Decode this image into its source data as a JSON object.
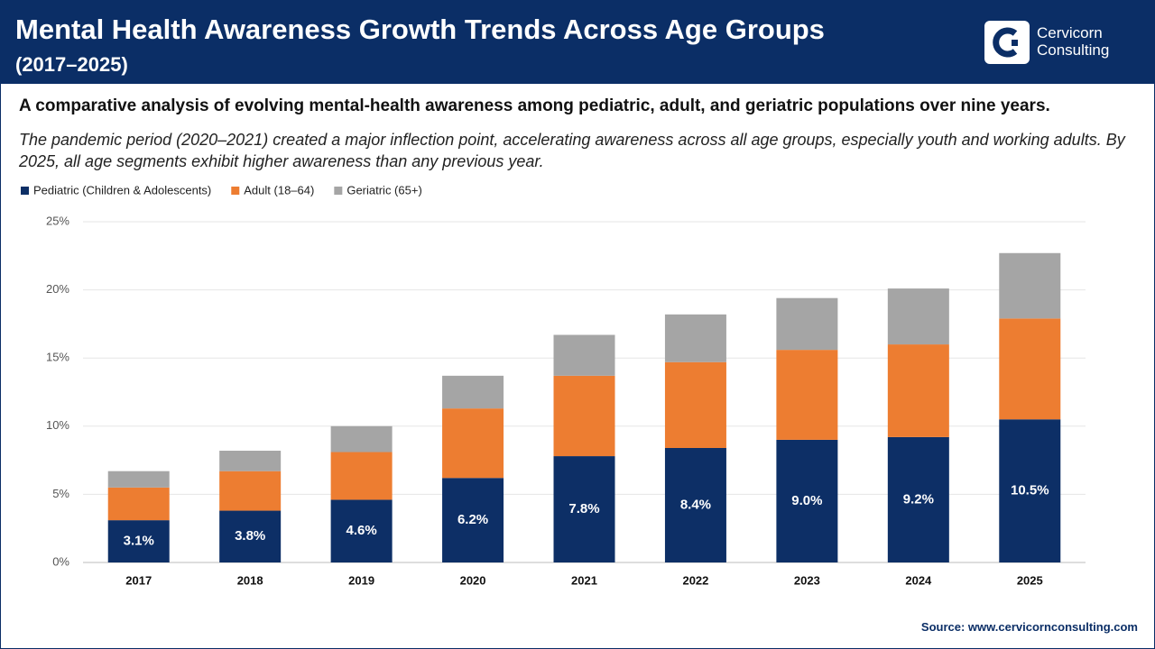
{
  "header": {
    "title": "Mental Health Awareness Growth Trends Across Age Groups",
    "subtitle": "(2017–2025)",
    "logo_line1": "Cervicorn",
    "logo_line2": "Consulting"
  },
  "chart_data": {
    "type": "stacked_bar",
    "title": "A comparative analysis of evolving mental-health awareness among pediatric, adult, and geriatric populations over nine years.",
    "description": "The pandemic period (2020–2021) created a major inflection point, accelerating awareness across all age groups, especially youth and working adults. By 2025, all age segments exhibit higher awareness than any previous year.",
    "categories": [
      "2017",
      "2018",
      "2019",
      "2020",
      "2021",
      "2022",
      "2023",
      "2024",
      "2025"
    ],
    "series": [
      {
        "name": "Pediatric (Children & Adolescents)",
        "color": "#0d2f66",
        "values": [
          3.1,
          3.8,
          4.6,
          6.2,
          7.8,
          8.4,
          9.0,
          9.2,
          10.5
        ],
        "value_labels": [
          "3.1%",
          "3.8%",
          "4.6%",
          "6.2%",
          "7.8%",
          "8.4%",
          "9.0%",
          "9.2%",
          "10.5%"
        ]
      },
      {
        "name": "Adult (18–64)",
        "color": "#ed7d31",
        "values": [
          2.4,
          2.9,
          3.5,
          5.1,
          5.9,
          6.3,
          6.6,
          6.8,
          7.4
        ]
      },
      {
        "name": "Geriatric (65+)",
        "color": "#a5a5a5",
        "values": [
          1.2,
          1.5,
          1.9,
          2.4,
          3.0,
          3.5,
          3.8,
          4.1,
          4.8
        ]
      }
    ],
    "ylim": [
      0,
      25
    ],
    "yticks": [
      {
        "value": 0,
        "label": "0%"
      },
      {
        "value": 5,
        "label": "5%"
      },
      {
        "value": 10,
        "label": "10%"
      },
      {
        "value": 15,
        "label": "15%"
      },
      {
        "value": 20,
        "label": "20%"
      },
      {
        "value": 25,
        "label": "25%"
      }
    ],
    "grid": true
  },
  "source": "Source: www.cervicornconsulting.com"
}
